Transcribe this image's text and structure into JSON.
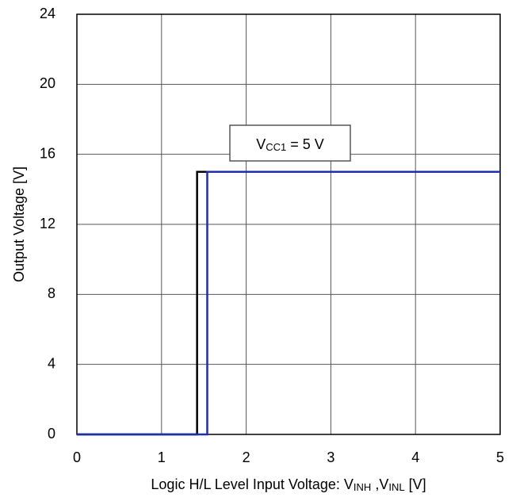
{
  "chart_data": {
    "type": "line",
    "x_label": [
      {
        "text": "Logic H/L Level Input Voltage: V"
      },
      {
        "sub": "INH"
      },
      {
        "text": " ,V"
      },
      {
        "sub": "INL"
      },
      {
        "text": " [V]"
      }
    ],
    "y_label": "Output Voltage [V]",
    "annotation": [
      {
        "text": "V"
      },
      {
        "sub": "CC1"
      },
      {
        "text": " = 5 V"
      }
    ],
    "series": [
      {
        "color": "#000000",
        "x": [
          0,
          1.42,
          1.42,
          5
        ],
        "values": [
          0,
          0,
          15,
          15
        ]
      },
      {
        "color": "#1f2fa8",
        "x": [
          0,
          1.54,
          1.54,
          5
        ],
        "values": [
          0,
          0,
          15,
          15
        ]
      }
    ],
    "xlim": [
      0,
      5
    ],
    "xticks": [
      0,
      1,
      2,
      3,
      4,
      5
    ],
    "ylim": [
      0,
      24
    ],
    "yticks": [
      0,
      4,
      8,
      12,
      16,
      20,
      24
    ],
    "grid": true
  }
}
